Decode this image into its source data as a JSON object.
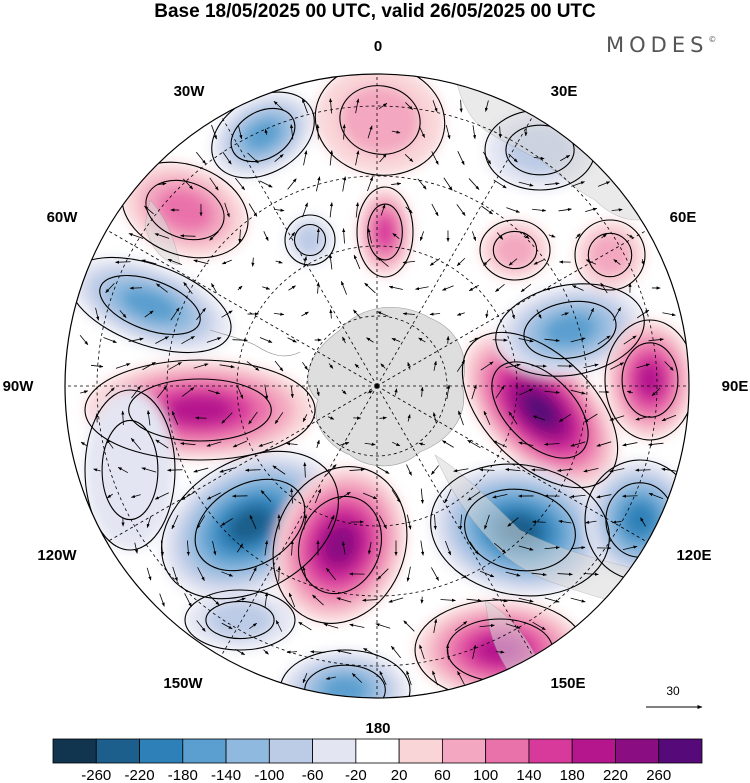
{
  "title": "Base 18/05/2025 00 UTC, valid 26/05/2025 00 UTC",
  "brand": "MODES",
  "brand_mark": "©",
  "longitude_labels": {
    "lon_0": "0",
    "lon_30e": "30E",
    "lon_60e": "60E",
    "lon_90e": "90E",
    "lon_120e": "120E",
    "lon_150e": "150E",
    "lon_180": "180",
    "lon_150w": "150W",
    "lon_120w": "120W",
    "lon_90w": "90W",
    "lon_60w": "60W",
    "lon_30w": "30W"
  },
  "reference_vector": {
    "value": "30"
  },
  "colorbar": {
    "labels": [
      "-260",
      "-220",
      "-180",
      "-140",
      "-100",
      "-60",
      "-20",
      "20",
      "60",
      "100",
      "140",
      "180",
      "220",
      "260"
    ],
    "colors": [
      "#12354f",
      "#1d5f8c",
      "#2e81b8",
      "#5a9fcf",
      "#8fb9de",
      "#bccbe6",
      "#e3e5f2",
      "#ffffff",
      "#f9d5d8",
      "#f3a7c0",
      "#ea72ab",
      "#d83a9c",
      "#b5168e",
      "#8a0d82",
      "#560978"
    ]
  },
  "colors": {
    "land": "#d9d9d9",
    "background": "#ffffff"
  }
}
